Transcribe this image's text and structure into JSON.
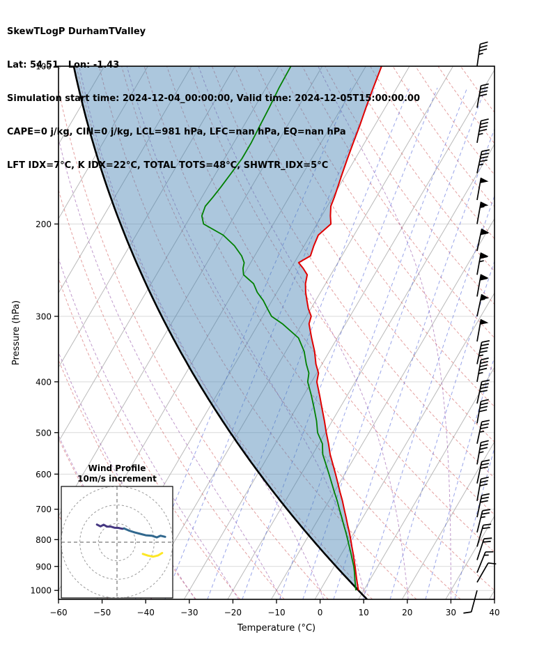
{
  "header": {
    "title": "SkewTLogP DurhamTValley",
    "location": "Lat: 54.51   Lon: -1.43",
    "times": "Simulation start time: 2024-12-04_00:00:00, Valid time: 2024-12-05T15:00:00.00",
    "indices1": "CAPE=0 j/kg, CIN=0 j/kg, LCL=981 hPa, LFC=nan hPa, EQ=nan hPa",
    "indices2": "LFT IDX=7°C, K IDX=22°C, TOTAL TOTS=48°C, SHWTR_IDX=5°C"
  },
  "chart_data": {
    "type": "line",
    "title": "SkewTLogP DurhamTValley",
    "xlabel": "Temperature (°C)",
    "ylabel": "Pressure (hPa)",
    "x_range": [
      -60,
      40
    ],
    "x_ticks": [
      -60,
      -50,
      -40,
      -30,
      -20,
      -10,
      0,
      10,
      20,
      30,
      40
    ],
    "y_ticks": [
      100,
      200,
      300,
      400,
      500,
      600,
      700,
      800,
      900,
      1000
    ],
    "p_top": 100,
    "p_bottom": 1040,
    "skew_deg_per_decade": 70.5,
    "pressure_hpa": [
      1000,
      975,
      950,
      925,
      900,
      875,
      850,
      825,
      800,
      775,
      750,
      725,
      700,
      675,
      650,
      625,
      600,
      575,
      550,
      525,
      500,
      475,
      450,
      425,
      400,
      385,
      370,
      350,
      330,
      310,
      300,
      290,
      280,
      270,
      260,
      250,
      243,
      237,
      230,
      220,
      210,
      200,
      193,
      185,
      178,
      170,
      160,
      150,
      140,
      130,
      120,
      110,
      100
    ],
    "temperature_c": [
      8.8,
      7.8,
      6.8,
      5.8,
      4.8,
      3.7,
      2.6,
      1.4,
      0.2,
      -1.1,
      -2.5,
      -3.9,
      -5.4,
      -6.9,
      -8.6,
      -10.3,
      -12.1,
      -14.0,
      -16.0,
      -17.8,
      -19.8,
      -21.8,
      -24.0,
      -26.3,
      -28.8,
      -29.6,
      -31.4,
      -33.4,
      -35.9,
      -38.4,
      -38.9,
      -40.6,
      -42.0,
      -43.4,
      -44.6,
      -45.4,
      -47.2,
      -49.0,
      -47.2,
      -47.8,
      -48.2,
      -46.8,
      -48.0,
      -49.2,
      -49.6,
      -50.2,
      -51.0,
      -51.8,
      -52.6,
      -53.4,
      -54.4,
      -55.4,
      -56.4
    ],
    "dewpoint_c": [
      8.2,
      7.3,
      6.4,
      5.5,
      4.5,
      3.3,
      2.1,
      0.8,
      -0.5,
      -1.9,
      -3.4,
      -4.9,
      -6.5,
      -8.1,
      -9.9,
      -11.7,
      -13.6,
      -15.6,
      -17.7,
      -19.2,
      -21.8,
      -23.6,
      -25.8,
      -28.2,
      -30.9,
      -31.8,
      -33.6,
      -35.8,
      -38.9,
      -44.5,
      -48.0,
      -50.0,
      -52.0,
      -54.5,
      -56.5,
      -60.0,
      -61.0,
      -61.5,
      -63.0,
      -66.0,
      -70.0,
      -76.0,
      -77.5,
      -78.0,
      -77.5,
      -77.0,
      -76.5,
      -76.0,
      -76.0,
      -76.3,
      -76.6,
      -77.0,
      -77.2
    ],
    "parcel": {
      "surface_pressure_hpa": 1000,
      "surface_temp_c": 8.8,
      "curve": "dry_adiabat"
    },
    "grid": {
      "isotherm_step_c": 10,
      "dry_adiabats_theta_c": {
        "min": -50,
        "max": 180,
        "step": 10
      },
      "moist_adiabats_t0_c": [
        -40,
        -30,
        -20,
        -10,
        0,
        10,
        20,
        30,
        40
      ],
      "mixing_ratios_g_kg": [
        0.1,
        0.2,
        0.5,
        1,
        2,
        3,
        5,
        8,
        12,
        20,
        30
      ]
    },
    "wind_barbs_p_kt_dir": [
      [
        100,
        35,
        8
      ],
      [
        120,
        40,
        10
      ],
      [
        140,
        45,
        10
      ],
      [
        160,
        45,
        12
      ],
      [
        180,
        50,
        10
      ],
      [
        200,
        55,
        10
      ],
      [
        225,
        60,
        12
      ],
      [
        250,
        65,
        10
      ],
      [
        275,
        60,
        10
      ],
      [
        300,
        55,
        12
      ],
      [
        335,
        50,
        10
      ],
      [
        370,
        45,
        12
      ],
      [
        400,
        45,
        10
      ],
      [
        440,
        40,
        12
      ],
      [
        480,
        40,
        10
      ],
      [
        525,
        35,
        12
      ],
      [
        575,
        35,
        10
      ],
      [
        625,
        30,
        12
      ],
      [
        675,
        30,
        10
      ],
      [
        725,
        28,
        12
      ],
      [
        775,
        25,
        14
      ],
      [
        825,
        22,
        16
      ],
      [
        875,
        18,
        18
      ],
      [
        925,
        15,
        22
      ],
      [
        965,
        12,
        30
      ],
      [
        1000,
        10,
        195
      ]
    ]
  },
  "inset": {
    "title_line1": "Wind Profile",
    "title_line2": "10m/s increment",
    "ring_radii_ms": [
      10,
      20,
      30
    ],
    "segments": [
      {
        "name": "low-level",
        "color": "#453781",
        "points": [
          [
            -10.8,
            9.5
          ],
          [
            -8.9,
            8.5
          ],
          [
            -7.2,
            9.4
          ],
          [
            -5.4,
            8.4
          ],
          [
            -3.4,
            8.4
          ],
          [
            -1.4,
            7.8
          ],
          [
            0.8,
            7.7
          ],
          [
            2.9,
            7.2
          ],
          [
            3.8,
            7.4
          ]
        ]
      },
      {
        "name": "mid-level",
        "color": "#31688e",
        "points": [
          [
            3.8,
            7.4
          ],
          [
            6.6,
            6.2
          ],
          [
            9.5,
            5.3
          ],
          [
            12.5,
            4.5
          ],
          [
            15.5,
            3.7
          ],
          [
            18.7,
            3.5
          ],
          [
            21.4,
            2.6
          ],
          [
            23.4,
            3.5
          ],
          [
            25.9,
            2.9
          ]
        ]
      },
      {
        "name": "upper-level",
        "color": "#fde725",
        "points": [
          [
            13.9,
            -6.3
          ],
          [
            16.6,
            -7.2
          ],
          [
            19.4,
            -7.8
          ],
          [
            22.2,
            -7.1
          ],
          [
            24.3,
            -5.8
          ]
        ]
      }
    ]
  },
  "colors": {
    "temperature": "#e00000",
    "dewpoint": "#008000",
    "parcel": "#000000",
    "shade": "rgba(70,130,180,0.45)",
    "isotherm": "#b9b9b9",
    "pressure_grid": "#d9d9d9",
    "dry_adiabat": "rgba(205,80,80,0.55)",
    "moist_adiabat": "rgba(150,85,170,0.6)",
    "mixing_ratio": "rgba(70,90,215,0.55)",
    "barb": "#000000",
    "ring": "#999999",
    "cross": "#777777"
  }
}
